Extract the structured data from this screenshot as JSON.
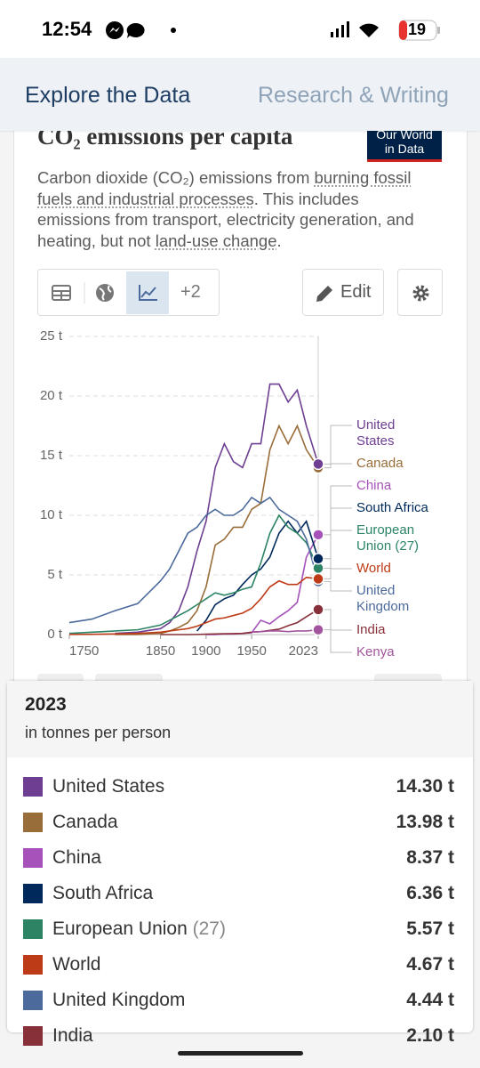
{
  "status_bar": {
    "time": "12:54",
    "battery": "19"
  },
  "nav": {
    "tabs": [
      "Explore the Data",
      "Research & Writing"
    ]
  },
  "card": {
    "title": "CO₂ emissions per capita",
    "logo": [
      "Our World",
      "in Data"
    ],
    "subtitle": [
      "Carbon dioxide (CO₂) emissions from ",
      "burning fossil fuels and industrial processes",
      ". This includes emissions from transport, electricity generation, and heating, but not ",
      "land-use change",
      "."
    ],
    "toolbar": {
      "more_tabs": "+2",
      "edit": "Edit"
    }
  },
  "chart_data": {
    "type": "line",
    "x": [
      1750,
      1775,
      1800,
      1825,
      1850,
      1860,
      1870,
      1880,
      1890,
      1900,
      1910,
      1920,
      1930,
      1940,
      1950,
      1960,
      1970,
      1980,
      1990,
      2000,
      2010,
      2023
    ],
    "xlim": [
      1750,
      2023
    ],
    "xticks": [
      1750,
      1850,
      1900,
      1950,
      2023
    ],
    "ylim": [
      0,
      25
    ],
    "yticks": [
      {
        "value": 0,
        "label": "0 t"
      },
      {
        "value": 5,
        "label": "5 t"
      },
      {
        "value": 10,
        "label": "10 t"
      },
      {
        "value": 15,
        "label": "15 t"
      },
      {
        "value": 20,
        "label": "20 t"
      },
      {
        "value": 25,
        "label": "25 t"
      }
    ],
    "grid": true,
    "series": [
      {
        "name": "United States",
        "color": "#6d3e91",
        "values": [
          null,
          null,
          0.1,
          0.2,
          0.5,
          1.0,
          2.0,
          4.0,
          7.0,
          9.5,
          14.0,
          16.0,
          14.5,
          14.0,
          16.0,
          16.0,
          21.0,
          21.0,
          19.5,
          20.5,
          17.5,
          14.3
        ]
      },
      {
        "name": "Canada",
        "color": "#996d39",
        "values": [
          null,
          null,
          0,
          0,
          0.1,
          0.3,
          0.6,
          1.0,
          2.0,
          4.0,
          7.5,
          8.0,
          9.0,
          9.0,
          10.5,
          11.0,
          15.5,
          17.5,
          16.0,
          17.5,
          15.5,
          13.98
        ]
      },
      {
        "name": "China",
        "color": "#a652ba",
        "values": [
          null,
          null,
          null,
          null,
          null,
          null,
          null,
          null,
          null,
          0.0,
          0.0,
          0.05,
          0.05,
          0.1,
          0.15,
          1.2,
          0.9,
          1.5,
          2.0,
          2.7,
          6.5,
          8.37
        ]
      },
      {
        "name": "South Africa",
        "color": "#00295b",
        "values": [
          null,
          null,
          null,
          null,
          null,
          null,
          null,
          null,
          0.3,
          1.2,
          2.5,
          3.0,
          3.3,
          4.2,
          5.0,
          5.5,
          6.5,
          8.5,
          9.5,
          8.5,
          9.5,
          6.36
        ]
      },
      {
        "name": "European Union (27)",
        "color": "#2c8465",
        "values": [
          0.1,
          0.2,
          0.3,
          0.4,
          0.8,
          1.2,
          1.6,
          2.0,
          2.5,
          3.0,
          3.5,
          3.3,
          3.5,
          3.8,
          4.0,
          6.0,
          8.5,
          10.0,
          9.0,
          8.5,
          7.7,
          5.57
        ]
      },
      {
        "name": "World",
        "color": "#be3b17",
        "values": [
          0.01,
          0.02,
          0.05,
          0.1,
          0.2,
          0.3,
          0.4,
          0.5,
          0.7,
          1.0,
          1.3,
          1.4,
          1.6,
          1.8,
          2.2,
          3.0,
          4.0,
          4.5,
          4.2,
          4.2,
          4.8,
          4.67
        ]
      },
      {
        "name": "United Kingdom",
        "color": "#4c6a9c",
        "values": [
          1.0,
          1.3,
          2.0,
          2.6,
          4.5,
          5.5,
          7.0,
          8.5,
          9.0,
          10.0,
          10.5,
          10.0,
          10.0,
          10.5,
          11.5,
          11.0,
          11.5,
          10.5,
          10.0,
          9.5,
          8.0,
          4.44
        ]
      },
      {
        "name": "India",
        "color": "#883039",
        "values": [
          null,
          null,
          null,
          null,
          0,
          0,
          0,
          0,
          0.01,
          0.03,
          0.05,
          0.07,
          0.08,
          0.1,
          0.2,
          0.25,
          0.35,
          0.45,
          0.75,
          1.0,
          1.5,
          2.1
        ]
      },
      {
        "name": "Kenya",
        "color": "#a2559c",
        "values": [
          null,
          null,
          null,
          null,
          null,
          null,
          null,
          null,
          null,
          null,
          null,
          null,
          null,
          null,
          0.2,
          0.25,
          0.3,
          0.3,
          0.25,
          0.3,
          0.3,
          0.4
        ]
      }
    ]
  },
  "tooltip": {
    "title": "2023",
    "subtitle": "in tonnes per person",
    "rows": [
      {
        "name": "United States",
        "value": "14.30 t"
      },
      {
        "name": "Canada",
        "value": "13.98 t"
      },
      {
        "name": "China",
        "value": "8.37 t"
      },
      {
        "name": "South Africa",
        "value": "6.36 t"
      },
      {
        "name": "European Union",
        "suffix": "(27)",
        "value": "5.57 t"
      },
      {
        "name": "World",
        "value": "4.67 t"
      },
      {
        "name": "United Kingdom",
        "value": "4.44 t"
      },
      {
        "name": "India",
        "value": "2.10 t"
      }
    ]
  }
}
